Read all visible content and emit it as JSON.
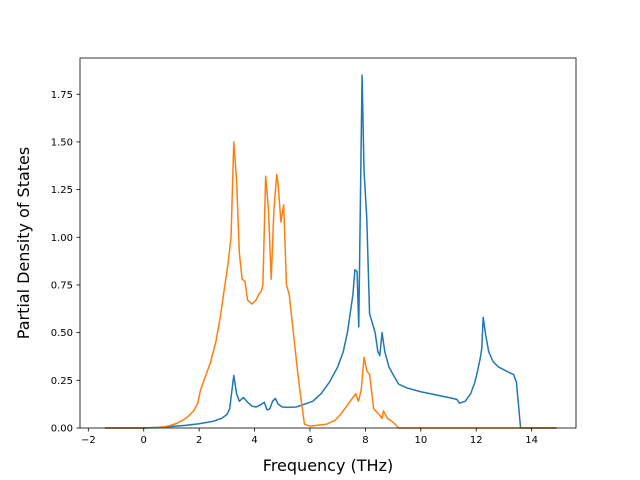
{
  "chart_data": {
    "type": "line",
    "title": "",
    "xlabel": "Frequency (THz)",
    "ylabel": "Partial Density of States",
    "xlim": [
      -2.3,
      15.6
    ],
    "ylim": [
      0,
      1.94
    ],
    "xticks": [
      -2,
      0,
      2,
      4,
      6,
      8,
      10,
      12,
      14
    ],
    "xtick_labels": [
      "−2",
      "0",
      "2",
      "4",
      "6",
      "8",
      "10",
      "12",
      "14"
    ],
    "yticks": [
      0.0,
      0.25,
      0.5,
      0.75,
      1.0,
      1.25,
      1.5,
      1.75
    ],
    "ytick_labels": [
      "0.00",
      "0.25",
      "0.50",
      "0.75",
      "1.00",
      "1.25",
      "1.50",
      "1.75"
    ],
    "grid": false,
    "legend": "none",
    "series": [
      {
        "color": "#1f77b4",
        "x": [
          -1.4,
          0.0,
          0.5,
          1.0,
          1.5,
          2.0,
          2.5,
          2.8,
          3.0,
          3.1,
          3.25,
          3.35,
          3.45,
          3.6,
          3.75,
          3.9,
          4.05,
          4.2,
          4.35,
          4.45,
          4.55,
          4.65,
          4.75,
          4.85,
          5.0,
          5.2,
          5.5,
          5.8,
          6.1,
          6.4,
          6.7,
          7.0,
          7.2,
          7.35,
          7.45,
          7.55,
          7.62,
          7.7,
          7.76,
          7.82,
          7.88,
          7.95,
          8.05,
          8.15,
          8.25,
          8.35,
          8.45,
          8.52,
          8.6,
          8.7,
          8.85,
          9.0,
          9.2,
          9.5,
          10.0,
          10.5,
          11.0,
          11.3,
          11.4,
          11.6,
          11.8,
          11.95,
          12.05,
          12.15,
          12.2,
          12.25,
          12.35,
          12.45,
          12.6,
          12.8,
          13.0,
          13.2,
          13.35,
          13.45,
          13.55,
          13.6,
          14.9
        ],
        "y": [
          0.0,
          0.0,
          0.003,
          0.008,
          0.014,
          0.022,
          0.035,
          0.05,
          0.07,
          0.1,
          0.275,
          0.18,
          0.14,
          0.16,
          0.135,
          0.115,
          0.11,
          0.12,
          0.135,
          0.095,
          0.1,
          0.14,
          0.155,
          0.125,
          0.11,
          0.108,
          0.11,
          0.125,
          0.14,
          0.18,
          0.24,
          0.32,
          0.4,
          0.5,
          0.6,
          0.7,
          0.83,
          0.82,
          0.53,
          1.2,
          1.85,
          1.35,
          1.1,
          0.6,
          0.55,
          0.5,
          0.4,
          0.38,
          0.5,
          0.4,
          0.32,
          0.28,
          0.23,
          0.21,
          0.19,
          0.175,
          0.16,
          0.15,
          0.13,
          0.14,
          0.18,
          0.24,
          0.3,
          0.37,
          0.42,
          0.58,
          0.48,
          0.4,
          0.35,
          0.32,
          0.305,
          0.29,
          0.28,
          0.24,
          0.08,
          0.0,
          0.0
        ]
      },
      {
        "color": "#ff7f0e",
        "x": [
          -1.4,
          0.0,
          0.5,
          0.8,
          1.0,
          1.2,
          1.4,
          1.6,
          1.8,
          1.95,
          2.05,
          2.2,
          2.4,
          2.6,
          2.75,
          2.9,
          3.05,
          3.15,
          3.25,
          3.35,
          3.45,
          3.55,
          3.65,
          3.75,
          3.9,
          4.05,
          4.15,
          4.25,
          4.3,
          4.4,
          4.5,
          4.6,
          4.7,
          4.8,
          4.85,
          4.95,
          5.05,
          5.15,
          5.25,
          5.4,
          5.55,
          5.65,
          5.8,
          6.0,
          6.3,
          6.6,
          6.9,
          7.1,
          7.3,
          7.45,
          7.55,
          7.65,
          7.75,
          7.85,
          7.95,
          8.05,
          8.15,
          8.3,
          8.5,
          8.6,
          8.65,
          8.8,
          9.0,
          9.2,
          10.0,
          12.0,
          14.9
        ],
        "y": [
          0.0,
          0.0,
          0.002,
          0.008,
          0.015,
          0.025,
          0.04,
          0.06,
          0.09,
          0.13,
          0.2,
          0.26,
          0.34,
          0.45,
          0.57,
          0.72,
          0.87,
          1.0,
          1.5,
          1.3,
          0.92,
          0.78,
          0.77,
          0.67,
          0.65,
          0.67,
          0.7,
          0.72,
          0.75,
          1.32,
          1.15,
          0.78,
          1.15,
          1.33,
          1.28,
          1.08,
          1.17,
          0.75,
          0.7,
          0.5,
          0.3,
          0.18,
          0.02,
          0.01,
          0.015,
          0.02,
          0.04,
          0.07,
          0.11,
          0.14,
          0.16,
          0.18,
          0.14,
          0.2,
          0.37,
          0.3,
          0.28,
          0.1,
          0.07,
          0.05,
          0.09,
          0.05,
          0.03,
          0.0,
          0.0,
          0.0,
          0.0
        ]
      }
    ]
  }
}
